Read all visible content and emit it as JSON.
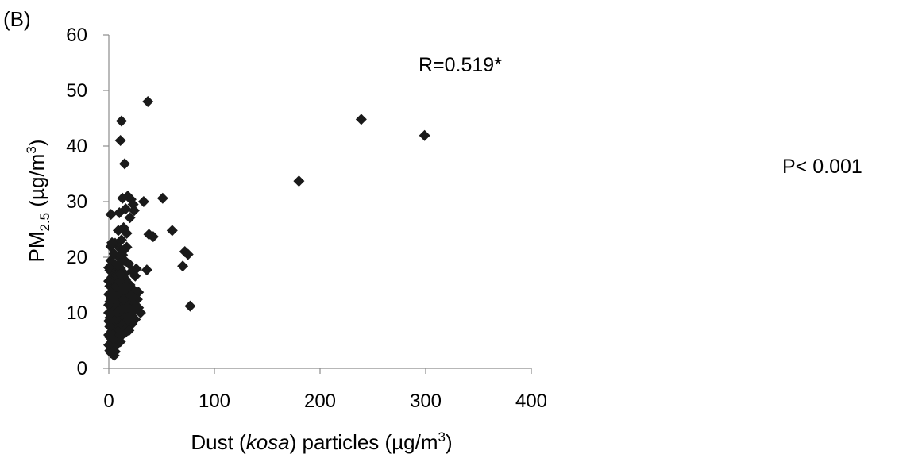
{
  "chart_data": {
    "type": "scatter",
    "panel_label": "(B)",
    "xlabel": {
      "pre": "Dust (",
      "italic": "kosa",
      "post": ") particles  (µg/m",
      "sup": "3",
      "end": ")"
    },
    "ylabel": {
      "pre": "PM",
      "sub": "2.5",
      "mid": " (µg/m",
      "sup": "3",
      "end": ")"
    },
    "xlim": [
      0,
      400
    ],
    "ylim": [
      0,
      60
    ],
    "xticks": [
      0,
      100,
      200,
      300,
      400
    ],
    "yticks": [
      0,
      10,
      20,
      30,
      40,
      50,
      60
    ],
    "xtick_labels": [
      "0",
      "100",
      "200",
      "300",
      "400"
    ],
    "ytick_labels": [
      "0",
      "10",
      "20",
      "30",
      "40",
      "50",
      "60"
    ],
    "grid": false,
    "legend": "none",
    "marker": "diamond",
    "marker_color": "#1a1a1a",
    "annotations": {
      "r_value": "R=0.519*",
      "p_value": "P< 0.001"
    },
    "points": [
      [
        239,
        44.8
      ],
      [
        299,
        41.9
      ],
      [
        180,
        33.7
      ],
      [
        37,
        48.0
      ],
      [
        12,
        44.5
      ],
      [
        11,
        41.0
      ],
      [
        15,
        36.8
      ],
      [
        51,
        30.6
      ],
      [
        33,
        30.0
      ],
      [
        60,
        24.8
      ],
      [
        38,
        24.1
      ],
      [
        42,
        23.7
      ],
      [
        72,
        21.0
      ],
      [
        75,
        20.5
      ],
      [
        70,
        18.4
      ],
      [
        77,
        11.2
      ],
      [
        36,
        17.7
      ],
      [
        30,
        10.0
      ],
      [
        25,
        8.8
      ],
      [
        22,
        8.0
      ],
      [
        28,
        13.7
      ],
      [
        18,
        31.0
      ],
      [
        21,
        30.4
      ],
      [
        23,
        29.5
      ],
      [
        20,
        27.1
      ],
      [
        24,
        28.4
      ],
      [
        13,
        30.6
      ],
      [
        16,
        28.7
      ],
      [
        2,
        27.7
      ],
      [
        10,
        28.0
      ],
      [
        14,
        25.3
      ],
      [
        9,
        24.8
      ],
      [
        17,
        24.3
      ],
      [
        12,
        23.1
      ],
      [
        6,
        22.5
      ],
      [
        2,
        21.9
      ],
      [
        11,
        21.5
      ],
      [
        17,
        21.8
      ],
      [
        15,
        19.4
      ],
      [
        19,
        18.8
      ],
      [
        26,
        17.9
      ],
      [
        22,
        17.5
      ],
      [
        25,
        16.6
      ],
      [
        27,
        12.4
      ],
      [
        20,
        15.0
      ],
      [
        23,
        14.2
      ],
      [
        24,
        11.5
      ],
      [
        28,
        10.9
      ],
      [
        19,
        10.4
      ],
      [
        17,
        9.4
      ],
      [
        14,
        8.3
      ],
      [
        16,
        6.5
      ],
      [
        12,
        7.4
      ],
      [
        10,
        12.1
      ],
      [
        11,
        14.6
      ],
      [
        13,
        16.3
      ],
      [
        8,
        18.2
      ],
      [
        9,
        20.1
      ],
      [
        7,
        17.1
      ],
      [
        6,
        15.5
      ],
      [
        5,
        13.1
      ],
      [
        4,
        11.3
      ],
      [
        3,
        9.6
      ],
      [
        2,
        19.4
      ],
      [
        1,
        17.6
      ],
      [
        3,
        16.4
      ],
      [
        1,
        14.8
      ],
      [
        2,
        12.6
      ],
      [
        4,
        10.8
      ],
      [
        1,
        9.1
      ],
      [
        2,
        7.9
      ],
      [
        3,
        6.7
      ],
      [
        1,
        5.6
      ],
      [
        2,
        4.4
      ],
      [
        3,
        3.5
      ],
      [
        5,
        2.3
      ],
      [
        6,
        4.0
      ],
      [
        7,
        5.1
      ],
      [
        8,
        6.2
      ],
      [
        9,
        7.0
      ],
      [
        10,
        8.6
      ],
      [
        11,
        9.9
      ],
      [
        12,
        11.0
      ],
      [
        13,
        12.8
      ],
      [
        14,
        13.9
      ],
      [
        15,
        15.2
      ],
      [
        16,
        16.0
      ],
      [
        17,
        12.0
      ],
      [
        18,
        14.5
      ],
      [
        19,
        9.0
      ],
      [
        20,
        11.7
      ],
      [
        21,
        13.2
      ],
      [
        4,
        19.0
      ],
      [
        5,
        20.6
      ],
      [
        6,
        18.6
      ],
      [
        7,
        16.8
      ],
      [
        8,
        14.2
      ],
      [
        9,
        12.3
      ],
      [
        10,
        10.2
      ],
      [
        3,
        22.6
      ],
      [
        4,
        15.8
      ],
      [
        5,
        8.2
      ],
      [
        6,
        9.5
      ],
      [
        7,
        11.9
      ],
      [
        8,
        13.6
      ],
      [
        9,
        15.1
      ],
      [
        10,
        17.3
      ],
      [
        11,
        18.0
      ],
      [
        12,
        19.2
      ],
      [
        13,
        20.4
      ],
      [
        14,
        21.2
      ],
      [
        15,
        17.0
      ],
      [
        16,
        14.9
      ],
      [
        17,
        13.0
      ],
      [
        18,
        11.3
      ],
      [
        19,
        12.7
      ],
      [
        20,
        10.6
      ],
      [
        21,
        9.6
      ],
      [
        22,
        12.9
      ],
      [
        23,
        10.3
      ],
      [
        1,
        12.0
      ],
      [
        2,
        10.3
      ],
      [
        3,
        13.7
      ],
      [
        4,
        7.3
      ],
      [
        5,
        6.0
      ],
      [
        6,
        7.7
      ],
      [
        7,
        8.9
      ],
      [
        8,
        10.1
      ],
      [
        9,
        5.5
      ],
      [
        10,
        6.9
      ],
      [
        11,
        4.8
      ],
      [
        12,
        5.9
      ],
      [
        13,
        7.8
      ],
      [
        14,
        9.7
      ],
      [
        15,
        11.6
      ],
      [
        16,
        10.9
      ],
      [
        1,
        3.2
      ],
      [
        2,
        2.8
      ],
      [
        3,
        4.9
      ],
      [
        4,
        5.3
      ],
      [
        5,
        3.7
      ],
      [
        6,
        3.0
      ],
      [
        2,
        6.4
      ],
      [
        1,
        7.5
      ],
      [
        0,
        10.0
      ],
      [
        0,
        13.3
      ],
      [
        0,
        15.7
      ],
      [
        0,
        18.1
      ],
      [
        0,
        8.5
      ],
      [
        0,
        6.0
      ],
      [
        0,
        4.2
      ],
      [
        0,
        11.4
      ],
      [
        5,
        14.2
      ],
      [
        6,
        13.0
      ],
      [
        7,
        14.7
      ],
      [
        8,
        16.6
      ],
      [
        9,
        18.5
      ],
      [
        10,
        15.6
      ],
      [
        11,
        16.9
      ],
      [
        12,
        14.0
      ],
      [
        13,
        10.6
      ],
      [
        14,
        12.4
      ],
      [
        15,
        9.2
      ],
      [
        16,
        8.1
      ],
      [
        17,
        7.2
      ],
      [
        18,
        8.7
      ],
      [
        19,
        6.8
      ],
      [
        20,
        9.3
      ]
    ]
  }
}
